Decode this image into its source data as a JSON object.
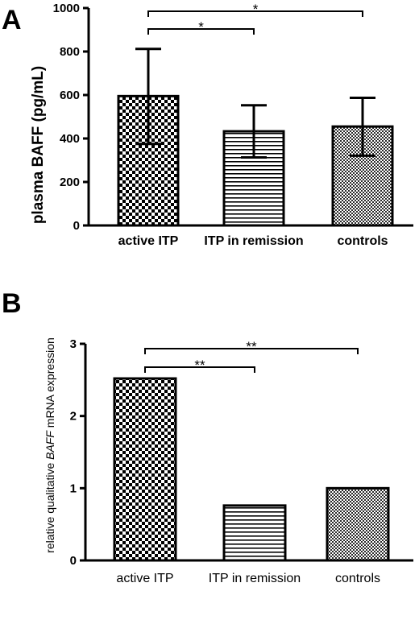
{
  "chart_data": [
    {
      "type": "bar",
      "panel_label": "A",
      "categories": [
        "active ITP",
        "ITP in remission",
        "controls"
      ],
      "values": [
        595,
        433,
        455
      ],
      "error_bars": [
        {
          "low": 375,
          "high": 812
        },
        {
          "low": 313,
          "high": 553
        },
        {
          "low": 321,
          "high": 587
        }
      ],
      "bar_patterns": [
        "checker-large",
        "horizontal-lines",
        "checker-small"
      ],
      "ylabel": "plasma BAFF (pg/mL)",
      "ylim": [
        0,
        1000
      ],
      "yticks": [
        0,
        200,
        400,
        600,
        800,
        1000
      ],
      "yticklabels": [
        "0",
        "200",
        "400",
        "600",
        "800",
        "1000"
      ],
      "grid": false,
      "significance": [
        {
          "from": 0,
          "to": 1,
          "label": "*"
        },
        {
          "from": 0,
          "to": 2,
          "label": "*"
        }
      ],
      "significance_levels": [
        0,
        1
      ]
    },
    {
      "type": "bar",
      "panel_label": "B",
      "categories": [
        "active ITP",
        "ITP in remission",
        "controls"
      ],
      "values": [
        2.52,
        0.76,
        1.0
      ],
      "bar_patterns": [
        "checker-large",
        "horizontal-lines",
        "checker-small"
      ],
      "ylabel_parts": [
        "relative qualitative ",
        "BAFF",
        " mRNA expression"
      ],
      "ylim": [
        0,
        3
      ],
      "yticks": [
        0,
        1,
        2,
        3
      ],
      "yticklabels": [
        "0",
        "1",
        "2",
        "3"
      ],
      "grid": false,
      "significance": [
        {
          "from": 0,
          "to": 1,
          "label": "**"
        },
        {
          "from": 0,
          "to": 2,
          "label": "**"
        }
      ],
      "significance_levels": [
        0,
        1
      ]
    }
  ],
  "colors": {
    "ink": "#000000",
    "background": "#ffffff"
  }
}
